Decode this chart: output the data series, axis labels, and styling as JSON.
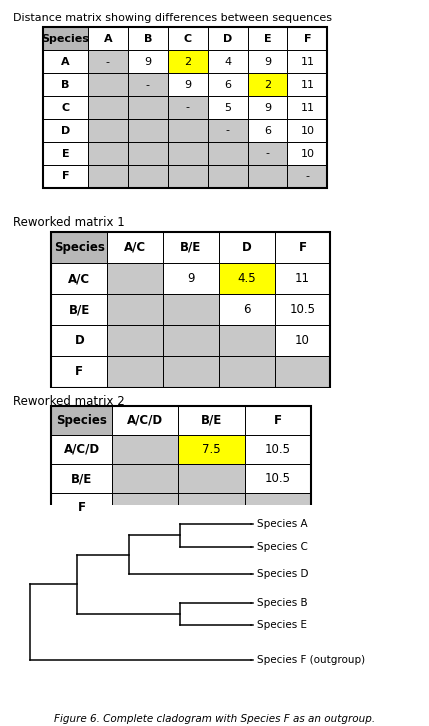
{
  "title1": "Distance matrix showing differences between sequences",
  "table1_header": [
    "Species",
    "A",
    "B",
    "C",
    "D",
    "E",
    "F"
  ],
  "table1_rows": [
    "A",
    "B",
    "C",
    "D",
    "E",
    "F"
  ],
  "table1_data": [
    [
      "-",
      "9",
      "2",
      "4",
      "9",
      "11"
    ],
    [
      "",
      "-",
      "9",
      "6",
      "2",
      "11"
    ],
    [
      "",
      "",
      "-",
      "5",
      "9",
      "11"
    ],
    [
      "",
      "",
      "",
      "-",
      "6",
      "10"
    ],
    [
      "",
      "",
      "",
      "",
      "-",
      "10"
    ],
    [
      "",
      "",
      "",
      "",
      "",
      "-"
    ]
  ],
  "table1_yellow": [
    [
      0,
      2
    ],
    [
      1,
      4
    ]
  ],
  "title2": "Reworked matrix 1",
  "table2_header": [
    "Species",
    "A/C",
    "B/E",
    "D",
    "F"
  ],
  "table2_rows": [
    "A/C",
    "B/E",
    "D",
    "F"
  ],
  "table2_data": [
    [
      "",
      "9",
      "4.5",
      "11"
    ],
    [
      "",
      "",
      "6",
      "10.5"
    ],
    [
      "",
      "",
      "",
      "10"
    ],
    [
      "",
      "",
      "",
      ""
    ]
  ],
  "table2_yellow": [
    [
      0,
      2
    ]
  ],
  "title3": "Reworked matrix 2",
  "table3_header": [
    "Species",
    "A/C/D",
    "B/E",
    "F"
  ],
  "table3_rows": [
    "A/C/D",
    "B/E",
    "F"
  ],
  "table3_data": [
    [
      "",
      "7.5",
      "10.5"
    ],
    [
      "",
      "",
      "10.5"
    ],
    [
      "",
      "",
      ""
    ]
  ],
  "table3_yellow": [
    [
      0,
      1
    ]
  ],
  "fig_caption": "Figure 6. Complete cladogram with Species F as an outgroup.",
  "cladogram_labels": [
    "Species A",
    "Species C",
    "Species D",
    "Species B",
    "Species E",
    "Species F (outgroup)"
  ],
  "gray_color": "#c8c8c8",
  "yellow_color": "#ffff00",
  "header_gray": "#b8b8b8",
  "white": "#ffffff"
}
